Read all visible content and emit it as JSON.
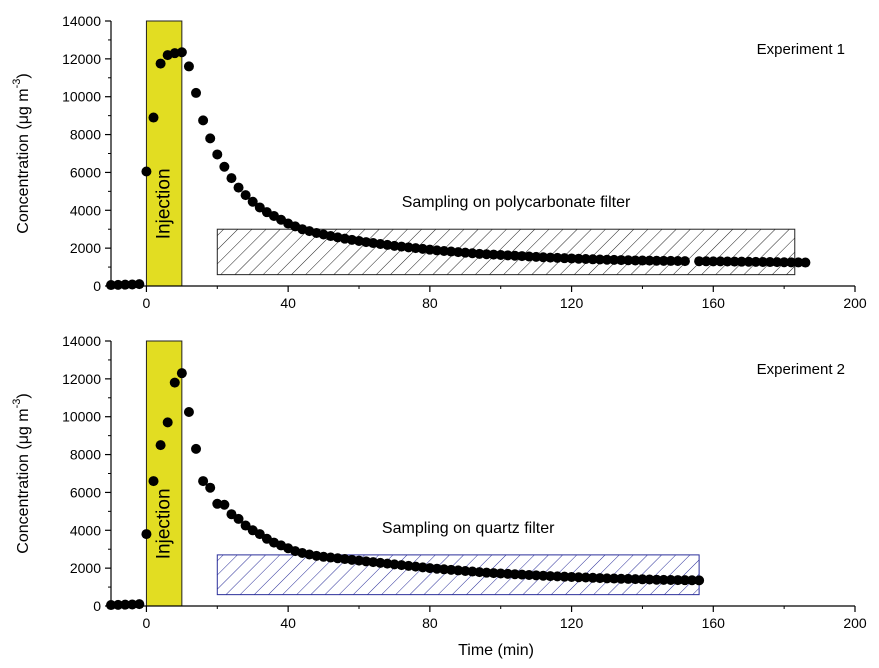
{
  "chart_data": [
    {
      "type": "scatter",
      "panel_label": "Experiment 1",
      "x_unit_label": "Time (min)",
      "y_label_main": "Concentration (μg m",
      "y_label_sup": "-3",
      "y_label_close": ")",
      "xlim": [
        -10,
        200
      ],
      "ylim": [
        0,
        14000
      ],
      "x_ticks": [
        0,
        40,
        80,
        120,
        160,
        200
      ],
      "x_tick_labels": [
        "0",
        "40",
        "80",
        "120",
        "160",
        "200"
      ],
      "y_ticks": [
        0,
        2000,
        4000,
        6000,
        8000,
        10000,
        12000,
        14000
      ],
      "y_tick_labels": [
        "0",
        "2000",
        "4000",
        "6000",
        "8000",
        "10000",
        "12000",
        "14000"
      ],
      "injection": {
        "x_start": 0,
        "x_end": 10,
        "label": "Injection",
        "color": "#e2dd22"
      },
      "sampling": {
        "x_start": 20,
        "x_end": 183,
        "y_low": 600,
        "y_high": 3000,
        "label": "Sampling on polycarbonate filter",
        "color": "#222222"
      },
      "series": [
        {
          "x": [
            -10,
            -8,
            -6,
            -4,
            -2,
            0,
            2,
            4,
            6,
            8,
            10,
            12,
            14,
            16,
            18,
            20,
            22,
            24,
            26,
            28,
            30,
            32,
            34,
            36,
            38,
            40,
            42,
            44,
            46,
            48,
            50,
            52,
            54,
            56,
            58,
            60,
            62,
            64,
            66,
            68,
            70,
            72,
            74,
            76,
            78,
            80,
            82,
            84,
            86,
            88,
            90,
            92,
            94,
            96,
            98,
            100,
            102,
            104,
            106,
            108,
            110,
            112,
            114,
            116,
            118,
            120,
            122,
            124,
            126,
            128,
            130,
            132,
            134,
            136,
            138,
            140,
            142,
            144,
            146,
            148,
            150,
            152,
            156,
            158,
            160,
            162,
            164,
            166,
            168,
            170,
            172,
            174,
            176,
            178,
            180,
            182,
            184,
            186
          ],
          "y": [
            50,
            60,
            70,
            80,
            100,
            6050,
            8900,
            11750,
            12200,
            12300,
            12350,
            11600,
            10200,
            8750,
            7800,
            6950,
            6300,
            5700,
            5200,
            4800,
            4450,
            4150,
            3900,
            3700,
            3500,
            3300,
            3150,
            3000,
            2900,
            2800,
            2720,
            2640,
            2570,
            2500,
            2440,
            2380,
            2320,
            2270,
            2220,
            2170,
            2120,
            2080,
            2040,
            2000,
            1960,
            1920,
            1880,
            1850,
            1820,
            1790,
            1760,
            1730,
            1700,
            1680,
            1660,
            1640,
            1620,
            1600,
            1580,
            1560,
            1540,
            1520,
            1500,
            1485,
            1470,
            1455,
            1440,
            1425,
            1410,
            1400,
            1390,
            1380,
            1370,
            1360,
            1350,
            1345,
            1340,
            1335,
            1330,
            1325,
            1320,
            1315,
            1310,
            1305,
            1300,
            1300,
            1295,
            1290,
            1285,
            1280,
            1275,
            1270,
            1265,
            1260,
            1255,
            1250,
            1245,
            1240
          ]
        }
      ]
    },
    {
      "type": "scatter",
      "panel_label": "Experiment 2",
      "x_unit_label": "Time (min)",
      "y_label_main": "Concentration (μg m",
      "y_label_sup": "-3",
      "y_label_close": ")",
      "xlim": [
        -10,
        200
      ],
      "ylim": [
        0,
        14000
      ],
      "x_ticks": [
        0,
        40,
        80,
        120,
        160,
        200
      ],
      "x_tick_labels": [
        "0",
        "40",
        "80",
        "120",
        "160",
        "200"
      ],
      "y_ticks": [
        0,
        2000,
        4000,
        6000,
        8000,
        10000,
        12000,
        14000
      ],
      "y_tick_labels": [
        "0",
        "2000",
        "4000",
        "6000",
        "8000",
        "10000",
        "12000",
        "14000"
      ],
      "injection": {
        "x_start": 0,
        "x_end": 10,
        "label": "Injection",
        "color": "#e2dd22"
      },
      "sampling": {
        "x_start": 20,
        "x_end": 156,
        "y_low": 600,
        "y_high": 2700,
        "label": "Sampling on quartz filter",
        "color": "#2b2f9a"
      },
      "series": [
        {
          "x": [
            -10,
            -8,
            -6,
            -4,
            -2,
            0,
            2,
            4,
            6,
            8,
            10,
            12,
            14,
            16,
            18,
            20,
            22,
            24,
            26,
            28,
            30,
            32,
            34,
            36,
            38,
            40,
            42,
            44,
            46,
            48,
            50,
            52,
            54,
            56,
            58,
            60,
            62,
            64,
            66,
            68,
            70,
            72,
            74,
            76,
            78,
            80,
            82,
            84,
            86,
            88,
            90,
            92,
            94,
            96,
            98,
            100,
            102,
            104,
            106,
            108,
            110,
            112,
            114,
            116,
            118,
            120,
            122,
            124,
            126,
            128,
            130,
            132,
            134,
            136,
            138,
            140,
            142,
            144,
            146,
            148,
            150,
            152,
            154,
            156
          ],
          "y": [
            50,
            60,
            70,
            80,
            100,
            3800,
            6600,
            8500,
            9700,
            11800,
            12300,
            10250,
            8300,
            6600,
            6250,
            5400,
            5350,
            4850,
            4600,
            4250,
            4000,
            3800,
            3550,
            3350,
            3200,
            3050,
            2900,
            2800,
            2720,
            2650,
            2600,
            2560,
            2520,
            2480,
            2440,
            2400,
            2360,
            2320,
            2280,
            2240,
            2200,
            2160,
            2120,
            2080,
            2040,
            2000,
            1970,
            1940,
            1910,
            1880,
            1850,
            1820,
            1790,
            1760,
            1740,
            1720,
            1700,
            1680,
            1660,
            1640,
            1620,
            1600,
            1580,
            1565,
            1550,
            1535,
            1520,
            1505,
            1490,
            1475,
            1460,
            1450,
            1440,
            1430,
            1420,
            1410,
            1400,
            1390,
            1380,
            1375,
            1370,
            1365,
            1360,
            1355
          ]
        }
      ]
    }
  ]
}
